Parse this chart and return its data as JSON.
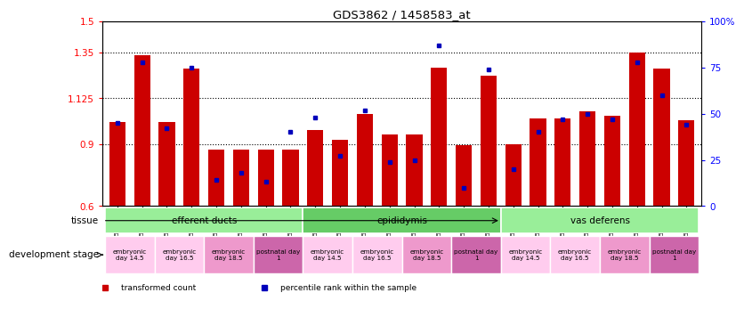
{
  "title": "GDS3862 / 1458583_at",
  "samples": [
    "GSM560923",
    "GSM560924",
    "GSM560925",
    "GSM560926",
    "GSM560927",
    "GSM560928",
    "GSM560929",
    "GSM560930",
    "GSM560931",
    "GSM560932",
    "GSM560933",
    "GSM560934",
    "GSM560935",
    "GSM560936",
    "GSM560937",
    "GSM560938",
    "GSM560939",
    "GSM560940",
    "GSM560941",
    "GSM560942",
    "GSM560943",
    "GSM560944",
    "GSM560945",
    "GSM560946"
  ],
  "red_values": [
    1.01,
    1.335,
    1.01,
    1.27,
    0.875,
    0.875,
    0.875,
    0.875,
    0.97,
    0.925,
    1.05,
    0.95,
    0.95,
    1.275,
    0.895,
    1.235,
    0.9,
    1.025,
    1.025,
    1.06,
    1.04,
    1.35,
    1.27,
    1.02
  ],
  "blue_values": [
    45,
    78,
    42,
    75,
    14,
    18,
    13,
    40,
    48,
    27,
    52,
    24,
    25,
    87,
    10,
    74,
    20,
    40,
    47,
    50,
    47,
    78,
    60,
    44
  ],
  "ylim_left": [
    0.6,
    1.5
  ],
  "ylim_right": [
    0,
    100
  ],
  "yticks_left": [
    0.6,
    0.9,
    1.125,
    1.35,
    1.5
  ],
  "ytick_labels_left": [
    "0.6",
    "0.9",
    "1.125",
    "1.35",
    "1.5"
  ],
  "yticks_right": [
    0,
    25,
    50,
    75,
    100
  ],
  "ytick_labels_right": [
    "0",
    "25",
    "50",
    "75",
    "100%"
  ],
  "hlines": [
    0.9,
    1.125,
    1.35
  ],
  "bar_color": "#cc0000",
  "dot_color": "#0000bb",
  "bg_color": "#ffffff",
  "tissue_groups": [
    {
      "label": "efferent ducts",
      "start": 0,
      "end": 7,
      "color": "#99ee99"
    },
    {
      "label": "epididymis",
      "start": 8,
      "end": 15,
      "color": "#66cc66"
    },
    {
      "label": "vas deferens",
      "start": 16,
      "end": 23,
      "color": "#99ee99"
    }
  ],
  "dev_groups": [
    {
      "label": "embryonic\nday 14.5",
      "start": 0,
      "end": 1,
      "color": "#ffccee"
    },
    {
      "label": "embryonic\nday 16.5",
      "start": 2,
      "end": 3,
      "color": "#ffccee"
    },
    {
      "label": "embryonic\nday 18.5",
      "start": 4,
      "end": 5,
      "color": "#ee99cc"
    },
    {
      "label": "postnatal day\n1",
      "start": 6,
      "end": 7,
      "color": "#cc66aa"
    },
    {
      "label": "embryonic\nday 14.5",
      "start": 8,
      "end": 9,
      "color": "#ffccee"
    },
    {
      "label": "embryonic\nday 16.5",
      "start": 10,
      "end": 11,
      "color": "#ffccee"
    },
    {
      "label": "embryonic\nday 18.5",
      "start": 12,
      "end": 13,
      "color": "#ee99cc"
    },
    {
      "label": "postnatal day\n1",
      "start": 14,
      "end": 15,
      "color": "#cc66aa"
    },
    {
      "label": "embryonic\nday 14.5",
      "start": 16,
      "end": 17,
      "color": "#ffccee"
    },
    {
      "label": "embryonic\nday 16.5",
      "start": 18,
      "end": 19,
      "color": "#ffccee"
    },
    {
      "label": "embryonic\nday 18.5",
      "start": 20,
      "end": 21,
      "color": "#ee99cc"
    },
    {
      "label": "postnatal day\n1",
      "start": 22,
      "end": 23,
      "color": "#cc66aa"
    }
  ],
  "legend_items": [
    {
      "color": "#cc0000",
      "label": "transformed count"
    },
    {
      "color": "#0000bb",
      "label": "percentile rank within the sample"
    }
  ],
  "tissue_label": "tissue",
  "dev_label": "development stage"
}
